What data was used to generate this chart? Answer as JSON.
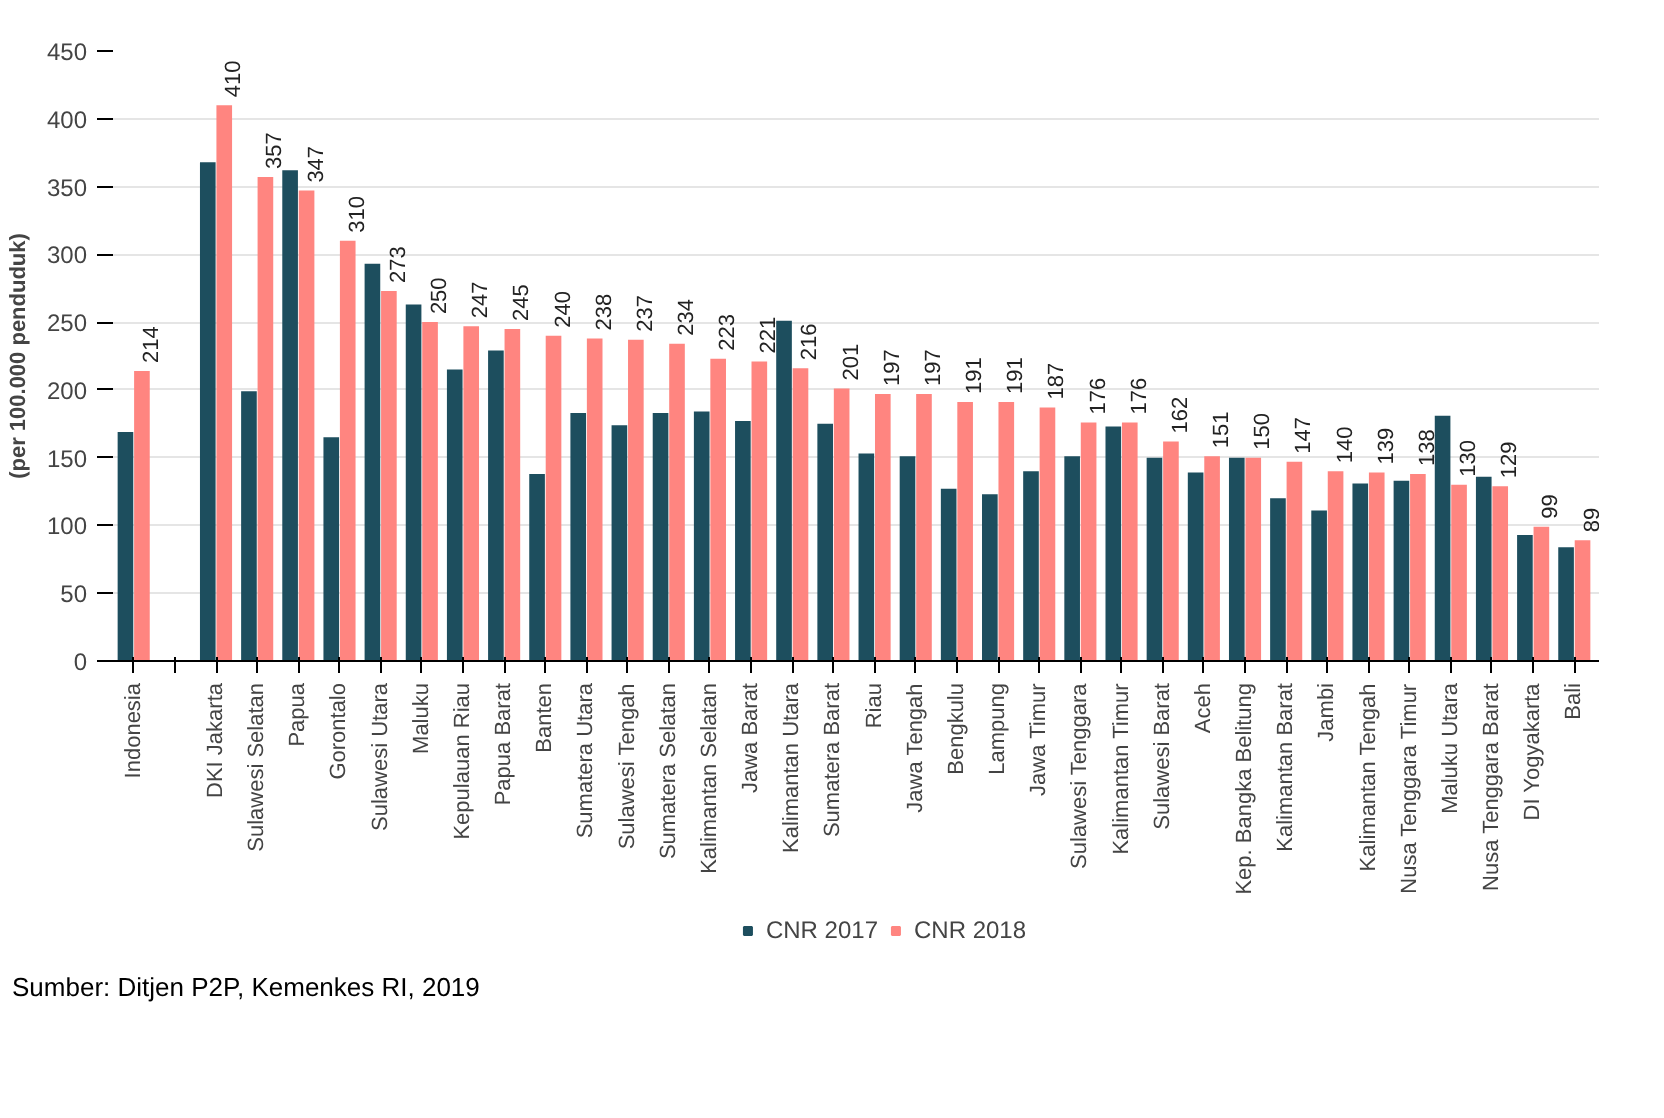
{
  "chart_data": {
    "type": "bar",
    "ylabel": "(per 100.000 penduduk)",
    "categories": [
      "Indonesia",
      null,
      "DKI Jakarta",
      "Sulawesi Selatan",
      "Papua",
      "Gorontalo",
      "Sulawesi Utara",
      "Maluku",
      "Kepulauan Riau",
      "Papua Barat",
      "Banten",
      "Sumatera Utara",
      "Sulawesi Tengah",
      "Sumatera Selatan",
      "Kalimantan Selatan",
      "Jawa Barat",
      "Kalimantan Utara",
      "Sumatera Barat",
      "Riau",
      "Jawa Tengah",
      "Bengkulu",
      "Lampung",
      "Jawa Timur",
      "Sulawesi Tenggara",
      "Kalimantan Timur",
      "Sulawesi Barat",
      "Aceh",
      "Kep. Bangka Belitung",
      "Kalimantan Barat",
      "Jambi",
      "Kalimantan Tengah",
      "Nusa Tenggara Timur",
      "Maluku Utara",
      "Nusa Tenggara Barat",
      "DI Yogyakarta",
      "Bali"
    ],
    "series": [
      {
        "name": "CNR 2017",
        "color": "#1d4e5e",
        "values": [
          169,
          null,
          368,
          199,
          362,
          165,
          293,
          263,
          215,
          229,
          138,
          183,
          174,
          183,
          184,
          177,
          251,
          175,
          153,
          151,
          127,
          123,
          140,
          151,
          173,
          150,
          139,
          150,
          120,
          111,
          131,
          133,
          181,
          136,
          93,
          84
        ]
      },
      {
        "name": "CNR 2018",
        "color": "#ff8580",
        "values": [
          214,
          null,
          410,
          357,
          347,
          310,
          273,
          250,
          247,
          245,
          240,
          238,
          237,
          234,
          223,
          221,
          216,
          201,
          197,
          197,
          191,
          191,
          187,
          176,
          176,
          162,
          151,
          150,
          147,
          140,
          139,
          138,
          130,
          129,
          99,
          89
        ],
        "value_labels": [
          "214",
          null,
          "410",
          "357",
          "347",
          "310",
          "273",
          "250",
          "247",
          "245",
          "240",
          "238",
          "237",
          "234",
          "223",
          "221",
          "216",
          "201",
          "197",
          "197",
          "191",
          "191",
          "187",
          "176",
          "176",
          "162",
          "151",
          "150",
          "147",
          "140",
          "139",
          "138",
          "130",
          "129",
          "99",
          "89"
        ]
      }
    ],
    "ylim": [
      0,
      450
    ],
    "yticks": [
      0,
      50,
      100,
      150,
      200,
      250,
      300,
      350,
      400,
      450
    ],
    "grid": "y",
    "legend": "bottom",
    "annotations": [
      "Sumber: Ditjen P2P, Kemenkes RI, 2019"
    ]
  }
}
